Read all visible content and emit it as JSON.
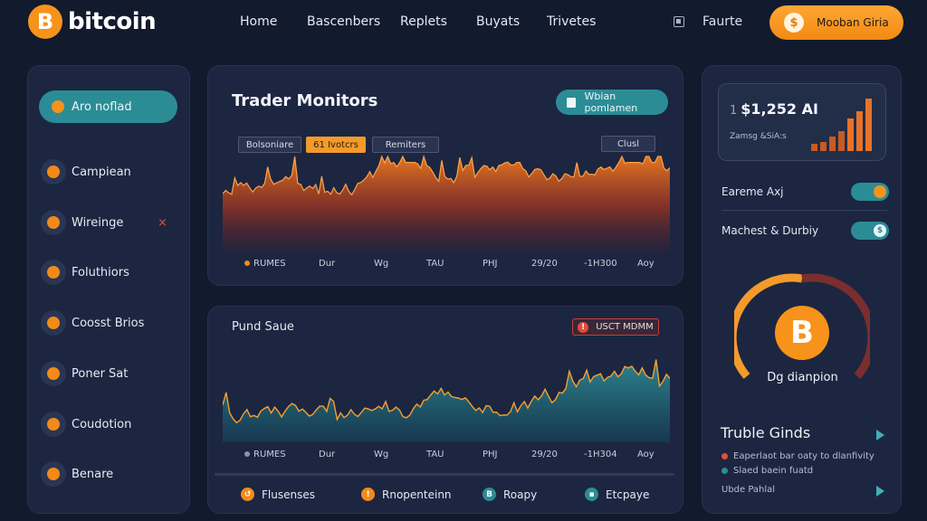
{
  "brand": {
    "name": "bitcoin",
    "logo_glyph": "B",
    "color": "#f7931a"
  },
  "nav": {
    "items": [
      "Home",
      "Bascenbers",
      "Replets",
      "Buyats",
      "Trivetes"
    ],
    "favorite_label": "Faurte"
  },
  "cta": {
    "label": "Mooban Giria",
    "icon_glyph": "$"
  },
  "sidebar": {
    "active": {
      "label": "Aro noflad"
    },
    "items": [
      {
        "label": "Campiean",
        "icon": "coin-icon"
      },
      {
        "label": "Wireinge",
        "icon": "warning-icon",
        "alert_glyph": "×"
      },
      {
        "label": "Foluthiors",
        "icon": "gear-icon"
      },
      {
        "label": "Coosst Brios",
        "icon": "coin-icon"
      },
      {
        "label": "Poner Sat",
        "icon": "coin-icon"
      },
      {
        "label": "Coudotion",
        "icon": "coin-icon"
      },
      {
        "label": "Benare",
        "icon": "coin-icon"
      }
    ]
  },
  "main_chart": {
    "title": "Trader Monitors",
    "button": "Wbian pomlamen",
    "tabs": [
      "Bolsoniare",
      "61 Ivotcrs",
      "Remiters"
    ],
    "chip": "Clusl",
    "legend": "RUMES",
    "x_labels": [
      "Dur",
      "Wg",
      "TAU",
      "PHJ",
      "29/20",
      "-1H300",
      "Aoy"
    ]
  },
  "second_chart": {
    "title": "Pund Saue",
    "warning": "USCT MDMM",
    "legend": "RUMES",
    "x_labels": [
      "Dur",
      "Wg",
      "TAU",
      "PHJ",
      "29/20",
      "-1H304",
      "Aoy"
    ]
  },
  "bottom_bar": [
    {
      "label": "Flusenses",
      "color": "#f28a1a",
      "glyph": "↺"
    },
    {
      "label": "Rnopenteinn",
      "color": "#f28a1a",
      "glyph": "!"
    },
    {
      "label": "Roapy",
      "color": "#2b8c96",
      "glyph": "B"
    },
    {
      "label": "Etcpaye",
      "color": "#2b8c96",
      "glyph": "▪"
    }
  ],
  "right": {
    "price_prefix": "1",
    "price": "$1,252 AI",
    "price_sub": "Zamsg &SiA:s",
    "toggles": [
      {
        "label": "Eareme Axj",
        "on": true,
        "knob": "#f7931a"
      },
      {
        "label": "Machest & Durbiy",
        "on": true,
        "knob": "$"
      }
    ],
    "gauge_label": "Dg dianpion",
    "trouble_title": "Truble Ginds",
    "trouble_items": [
      {
        "label": "Eaperlaot bar oaty to dlanfivity",
        "color": "#e0503c"
      },
      {
        "label": "Slaed baein fuatd",
        "color": "#2b8c96"
      }
    ],
    "trouble_footer": "Ubde Pahlal"
  },
  "colors": {
    "accent": "#f7931a",
    "teal": "#2b8c96",
    "bg": "#121a2e",
    "panel": "#1c2640"
  }
}
